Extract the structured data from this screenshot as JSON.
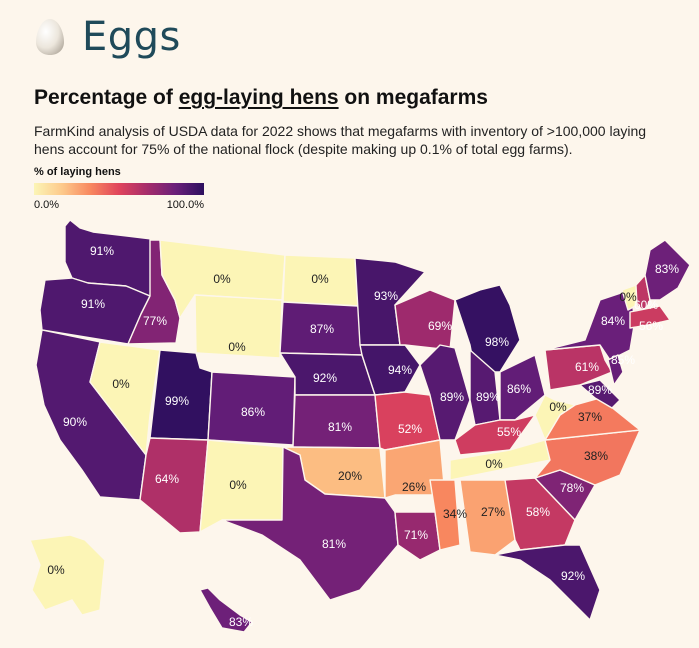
{
  "header": {
    "brand": "Eggs",
    "icon": "egg-icon"
  },
  "title": {
    "prefix": "Percentage of ",
    "link": "egg-laying hens",
    "suffix": " on megafarms"
  },
  "subtitle": "FarmKind analysis of USDA data for 2022 shows that megafarms with inventory of >100,000 laying hens account for 75% of the national flock (despite making up 0.1% of total egg farms).",
  "legend": {
    "title": "% of laying hens",
    "min_label": "0.0%",
    "max_label": "100.0%"
  },
  "colors": {
    "background": "#fdf6ec",
    "brand": "#1f4a5a",
    "scale_low": "#fcf5b6",
    "scale_high": "#2d0f5e"
  },
  "chart_data": {
    "type": "choropleth",
    "value_unit": "%",
    "scale": [
      0,
      100
    ],
    "states": [
      {
        "id": "WA",
        "value": 91
      },
      {
        "id": "OR",
        "value": 91
      },
      {
        "id": "CA",
        "value": 90
      },
      {
        "id": "NV",
        "value": 0
      },
      {
        "id": "ID",
        "value": 77
      },
      {
        "id": "MT",
        "value": 0
      },
      {
        "id": "WY",
        "value": 0
      },
      {
        "id": "UT",
        "value": 99
      },
      {
        "id": "AZ",
        "value": 64
      },
      {
        "id": "CO",
        "value": 86
      },
      {
        "id": "NM",
        "value": 0
      },
      {
        "id": "ND",
        "value": 0
      },
      {
        "id": "SD",
        "value": 87
      },
      {
        "id": "NE",
        "value": 92
      },
      {
        "id": "KS",
        "value": 81
      },
      {
        "id": "OK",
        "value": 20
      },
      {
        "id": "TX",
        "value": 81
      },
      {
        "id": "MN",
        "value": 93
      },
      {
        "id": "IA",
        "value": 94
      },
      {
        "id": "MO",
        "value": 52
      },
      {
        "id": "AR",
        "value": 26
      },
      {
        "id": "LA",
        "value": 71
      },
      {
        "id": "WI",
        "value": 69
      },
      {
        "id": "IL",
        "value": 89
      },
      {
        "id": "MI",
        "value": 98
      },
      {
        "id": "IN",
        "value": 89
      },
      {
        "id": "OH",
        "value": 86
      },
      {
        "id": "KY",
        "value": 55
      },
      {
        "id": "TN",
        "value": 0
      },
      {
        "id": "MS",
        "value": 34
      },
      {
        "id": "AL",
        "value": 27
      },
      {
        "id": "GA",
        "value": 58
      },
      {
        "id": "FL",
        "value": 92
      },
      {
        "id": "SC",
        "value": 78
      },
      {
        "id": "NC",
        "value": 38
      },
      {
        "id": "VA",
        "value": 37
      },
      {
        "id": "WV",
        "value": 0
      },
      {
        "id": "PA",
        "value": 61
      },
      {
        "id": "NY",
        "value": 84
      },
      {
        "id": "VT",
        "value": 0
      },
      {
        "id": "NH",
        "value": 60
      },
      {
        "id": "ME",
        "value": 83
      },
      {
        "id": "MA",
        "value": 56
      },
      {
        "id": "NJ",
        "value": 85
      },
      {
        "id": "MD",
        "value": 89
      },
      {
        "id": "AK",
        "value": 0
      },
      {
        "id": "HI",
        "value": 83
      }
    ]
  }
}
